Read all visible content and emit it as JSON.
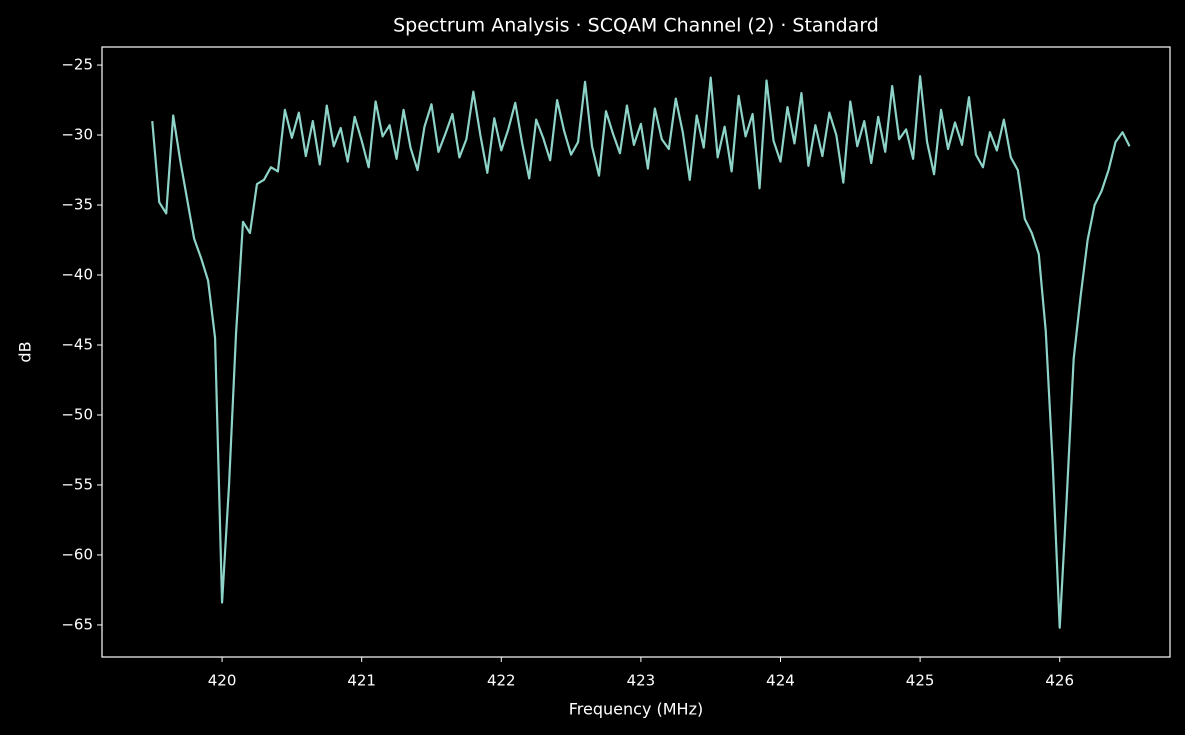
{
  "chart_data": {
    "type": "line",
    "title": "Spectrum Analysis · SCQAM Channel (2) · Standard",
    "x_label": "Frequency (MHz)",
    "y_label": "dB",
    "xlim": [
      419.14,
      426.79
    ],
    "ylim": [
      -67.29,
      -23.71
    ],
    "xticks": [
      420,
      421,
      422,
      423,
      424,
      425,
      426
    ],
    "yticks": [
      {
        "value": -25,
        "label": "−25"
      },
      {
        "value": -30,
        "label": "−30"
      },
      {
        "value": -35,
        "label": "−35"
      },
      {
        "value": -40,
        "label": "−40"
      },
      {
        "value": -45,
        "label": "−45"
      },
      {
        "value": -50,
        "label": "−50"
      },
      {
        "value": -55,
        "label": "−55"
      },
      {
        "value": -60,
        "label": "−60"
      },
      {
        "value": -65,
        "label": "−65"
      }
    ],
    "x": [
      419.5,
      419.55,
      419.6,
      419.65,
      419.7,
      419.75,
      419.8,
      419.85,
      419.9,
      419.95,
      420.0,
      420.05,
      420.1,
      420.15,
      420.2,
      420.25,
      420.3,
      420.35,
      420.4,
      420.45,
      420.5,
      420.55,
      420.6,
      420.65,
      420.7,
      420.75,
      420.8,
      420.85,
      420.9,
      420.95,
      421.0,
      421.05,
      421.1,
      421.15,
      421.2,
      421.25,
      421.3,
      421.35,
      421.4,
      421.45,
      421.5,
      421.55,
      421.6,
      421.65,
      421.7,
      421.75,
      421.8,
      421.85,
      421.9,
      421.95,
      422.0,
      422.05,
      422.1,
      422.15,
      422.2,
      422.25,
      422.3,
      422.35,
      422.4,
      422.45,
      422.5,
      422.55,
      422.6,
      422.65,
      422.7,
      422.75,
      422.8,
      422.85,
      422.9,
      422.95,
      423.0,
      423.05,
      423.1,
      423.15,
      423.2,
      423.25,
      423.3,
      423.35,
      423.4,
      423.45,
      423.5,
      423.55,
      423.6,
      423.65,
      423.7,
      423.75,
      423.8,
      423.85,
      423.9,
      423.95,
      424.0,
      424.05,
      424.1,
      424.15,
      424.2,
      424.25,
      424.3,
      424.35,
      424.4,
      424.45,
      424.5,
      424.55,
      424.6,
      424.65,
      424.7,
      424.75,
      424.8,
      424.85,
      424.9,
      424.95,
      425.0,
      425.05,
      425.1,
      425.15,
      425.2,
      425.25,
      425.3,
      425.35,
      425.4,
      425.45,
      425.5,
      425.55,
      425.6,
      425.65,
      425.7,
      425.75,
      425.8,
      425.85,
      425.9,
      425.95,
      426.0,
      426.05,
      426.1,
      426.15,
      426.2,
      426.25,
      426.3,
      426.35,
      426.4,
      426.45,
      426.5
    ],
    "series": [
      {
        "color": "#8dd3c7",
        "values": [
          -29.0,
          -34.8,
          -35.6,
          -28.6,
          -31.8,
          -34.6,
          -37.4,
          -38.8,
          -40.4,
          -44.5,
          -63.4,
          -55.0,
          -44.2,
          -36.2,
          -37.0,
          -33.5,
          -33.2,
          -32.3,
          -32.6,
          -28.2,
          -30.2,
          -28.4,
          -31.5,
          -29.0,
          -32.1,
          -27.9,
          -30.8,
          -29.5,
          -31.9,
          -28.7,
          -30.4,
          -32.3,
          -27.6,
          -30.1,
          -29.3,
          -31.7,
          -28.2,
          -30.9,
          -32.5,
          -29.4,
          -27.8,
          -31.2,
          -29.9,
          -28.5,
          -31.6,
          -30.3,
          -26.9,
          -30.0,
          -32.7,
          -28.8,
          -31.1,
          -29.6,
          -27.7,
          -30.6,
          -33.1,
          -28.9,
          -30.2,
          -31.8,
          -27.5,
          -29.7,
          -31.4,
          -30.5,
          -26.2,
          -30.8,
          -32.9,
          -28.3,
          -29.9,
          -31.3,
          -27.9,
          -30.7,
          -29.2,
          -32.4,
          -28.1,
          -30.3,
          -31.0,
          -27.4,
          -29.8,
          -33.2,
          -28.6,
          -30.9,
          -25.9,
          -31.6,
          -29.4,
          -32.6,
          -27.2,
          -30.1,
          -28.5,
          -33.8,
          -26.1,
          -30.4,
          -31.9,
          -28.0,
          -30.6,
          -27.0,
          -32.2,
          -29.3,
          -31.5,
          -28.4,
          -30.0,
          -33.4,
          -27.6,
          -30.8,
          -29.0,
          -32.0,
          -28.7,
          -31.2,
          -26.5,
          -30.3,
          -29.6,
          -31.7,
          -25.8,
          -30.5,
          -32.8,
          -28.2,
          -31.0,
          -29.1,
          -30.7,
          -27.3,
          -31.4,
          -32.3,
          -29.8,
          -31.1,
          -28.9,
          -31.6,
          -32.5,
          -36.0,
          -37.0,
          -38.5,
          -44.0,
          -53.5,
          -65.2,
          -56.0,
          -46.0,
          -41.5,
          -37.5,
          -35.0,
          -34.0,
          -32.5,
          -30.5,
          -29.8,
          -30.8
        ]
      }
    ]
  }
}
